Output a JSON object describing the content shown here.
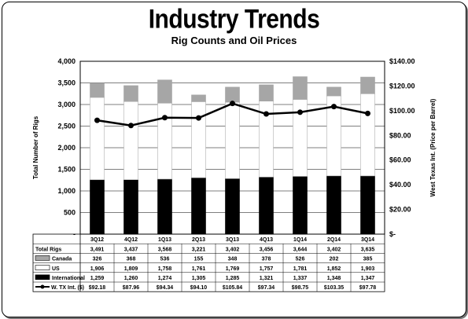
{
  "title": "Industry Trends",
  "subtitle": "Rig Counts and Oil Prices",
  "chart_data": {
    "type": "bar",
    "stacked": true,
    "title": "Industry Trends",
    "subtitle": "Rig Counts and Oil Prices",
    "categories": [
      "3Q12",
      "4Q12",
      "1Q13",
      "2Q13",
      "3Q13",
      "4Q13",
      "1Q14",
      "2Q14",
      "3Q14"
    ],
    "ylabel": "Total Number of Rigs",
    "y2label": "West Texas Int. (Price per Barrel)",
    "ylim": [
      0,
      4000
    ],
    "y2lim": [
      0,
      140
    ],
    "y_ticks": [
      "-",
      "500",
      "1,000",
      "1,500",
      "2,000",
      "2,500",
      "3,000",
      "3,500",
      "4,000"
    ],
    "y2_ticks": [
      "$-",
      "$20.00",
      "$40.00",
      "$60.00",
      "$80.00",
      "$100.00",
      "$120.00",
      "$140.00"
    ],
    "grid": true,
    "series": [
      {
        "name": "Canada",
        "type": "bar",
        "color": "#a6a6a6",
        "values": [
          326,
          368,
          536,
          155,
          348,
          378,
          526,
          202,
          385
        ]
      },
      {
        "name": "US",
        "type": "bar",
        "color": "#ffffff",
        "values": [
          1906,
          1809,
          1758,
          1761,
          1769,
          1757,
          1781,
          1852,
          1903
        ]
      },
      {
        "name": "International",
        "type": "bar",
        "color": "#000000",
        "values": [
          1259,
          1260,
          1274,
          1305,
          1285,
          1321,
          1337,
          1348,
          1347
        ]
      },
      {
        "name": "W. TX Int. ($)",
        "type": "line",
        "axis": "right",
        "color": "#000000",
        "values": [
          92.18,
          87.96,
          94.34,
          94.1,
          105.84,
          97.34,
          98.75,
          103.35,
          97.78
        ]
      }
    ],
    "totals": [
      3491,
      3437,
      3568,
      3221,
      3402,
      3456,
      3644,
      3402,
      3635
    ]
  },
  "table": {
    "rows": [
      {
        "label": "Total Rigs",
        "cells": [
          "3,491",
          "3,437",
          "3,568",
          "3,221",
          "3,402",
          "3,456",
          "3,644",
          "3,402",
          "3,635"
        ]
      },
      {
        "label": "Canada",
        "cells": [
          "326",
          "368",
          "536",
          "155",
          "348",
          "378",
          "526",
          "202",
          "385"
        ]
      },
      {
        "label": "US",
        "cells": [
          "1,906",
          "1,809",
          "1,758",
          "1,761",
          "1,769",
          "1,757",
          "1,781",
          "1,852",
          "1,903"
        ]
      },
      {
        "label": "International",
        "cells": [
          "1,259",
          "1,260",
          "1,274",
          "1,305",
          "1,285",
          "1,321",
          "1,337",
          "1,348",
          "1,347"
        ]
      },
      {
        "label": "W. TX Int. ($)",
        "cells": [
          "$92.18",
          "$87.96",
          "$94.34",
          "$94.10",
          "$105.84",
          "$97.34",
          "$98.75",
          "$103.35",
          "$97.78"
        ]
      }
    ]
  }
}
